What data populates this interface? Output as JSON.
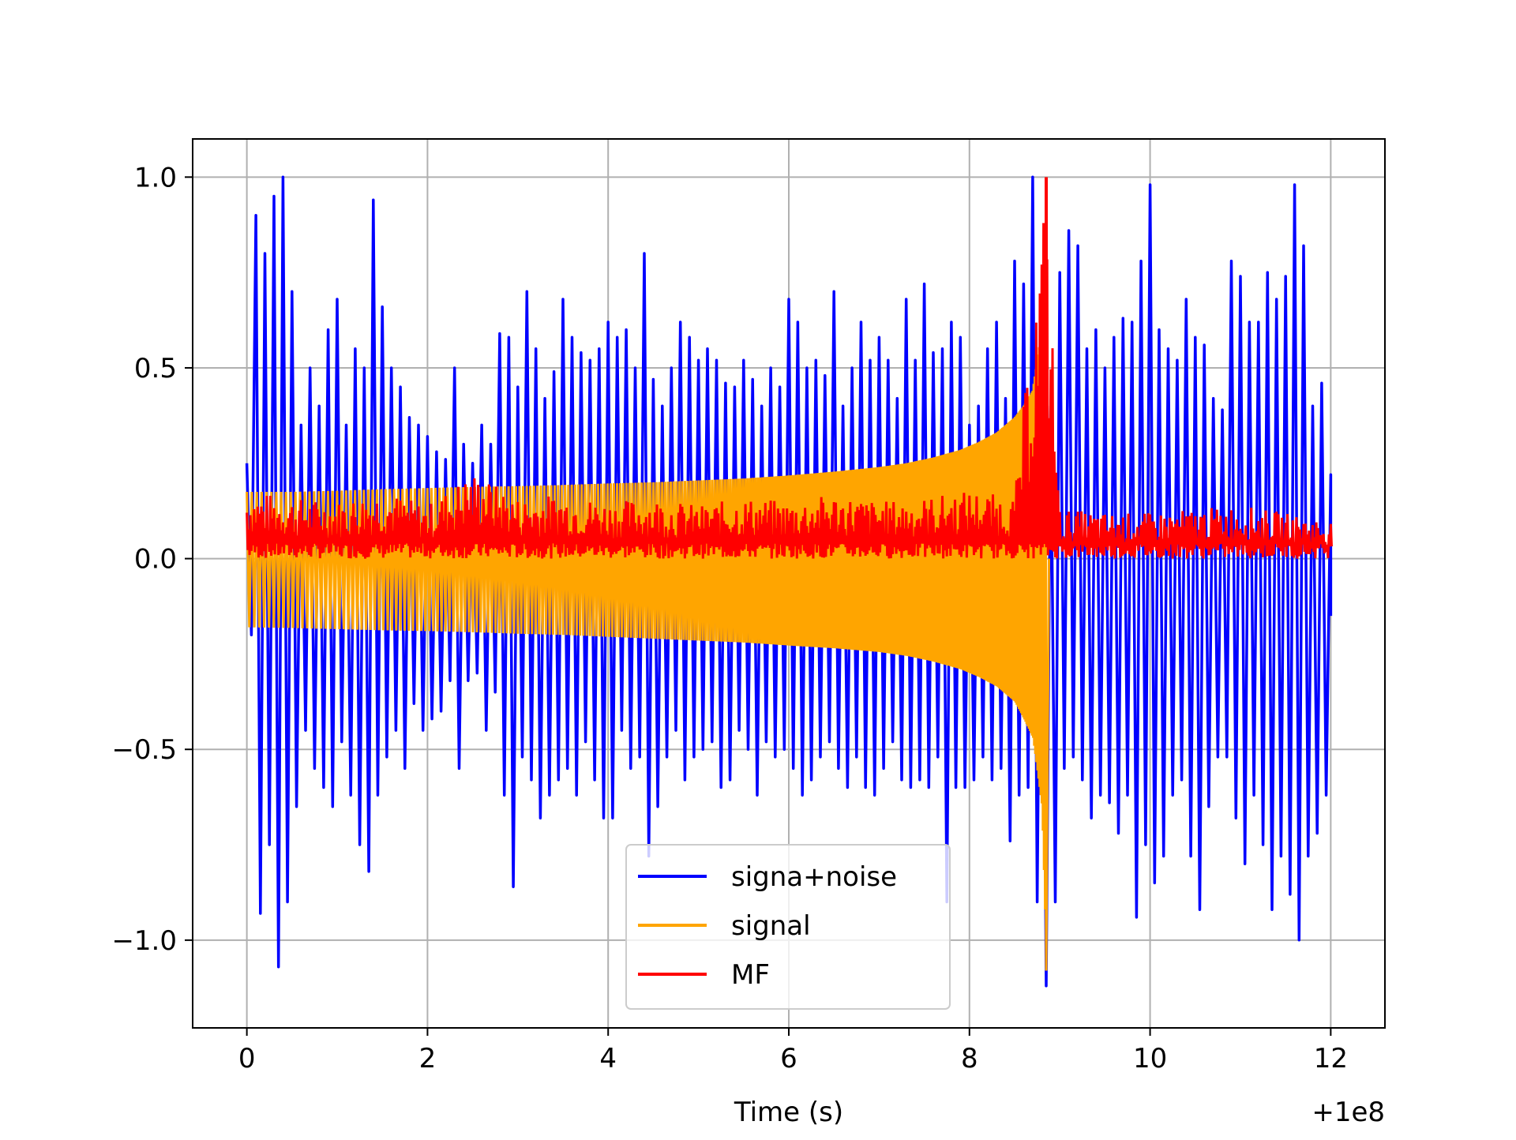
{
  "chart_data": {
    "type": "line",
    "title": "",
    "xlabel": "Time (s)",
    "ylabel": "",
    "x_offset_label": "+1e8",
    "xlim": [
      -0.6,
      12.6
    ],
    "ylim": [
      -1.23,
      1.1
    ],
    "xticks": [
      0,
      2,
      4,
      6,
      8,
      10,
      12
    ],
    "xtick_labels": [
      "0",
      "2",
      "4",
      "6",
      "8",
      "10",
      "12"
    ],
    "yticks": [
      -1.0,
      -0.5,
      0.0,
      0.5,
      1.0
    ],
    "ytick_labels": [
      "−1.0",
      "−0.5",
      "0.0",
      "0.5",
      "1.0"
    ],
    "grid": true,
    "legend_position": "lower-center",
    "series": [
      {
        "name": "signa+noise",
        "color": "#0000ff",
        "x": [
          0,
          0.1,
          0.2,
          0.3,
          0.4,
          0.5,
          0.6,
          0.7,
          0.8,
          0.9,
          1.0,
          1.1,
          1.2,
          1.3,
          1.4,
          1.5,
          1.6,
          1.7,
          1.8,
          1.9,
          2.0,
          2.1,
          2.2,
          2.3,
          2.4,
          2.5,
          2.6,
          2.7,
          2.8,
          2.9,
          3.0,
          3.1,
          3.2,
          3.3,
          3.4,
          3.5,
          3.6,
          3.7,
          3.8,
          3.9,
          4.0,
          4.1,
          4.2,
          4.3,
          4.4,
          4.5,
          4.6,
          4.7,
          4.8,
          4.9,
          5.0,
          5.1,
          5.2,
          5.3,
          5.4,
          5.5,
          5.6,
          5.7,
          5.8,
          5.9,
          6.0,
          6.1,
          6.2,
          6.3,
          6.4,
          6.5,
          6.6,
          6.7,
          6.8,
          6.9,
          7.0,
          7.1,
          7.2,
          7.3,
          7.4,
          7.5,
          7.6,
          7.7,
          7.8,
          7.9,
          8.0,
          8.1,
          8.2,
          8.3,
          8.4,
          8.5,
          8.6,
          8.7,
          8.8,
          8.9,
          9.0,
          9.1,
          9.2,
          9.3,
          9.4,
          9.5,
          9.6,
          9.7,
          9.8,
          9.9,
          10.0,
          10.1,
          10.2,
          10.3,
          10.4,
          10.5,
          10.6,
          10.7,
          10.8,
          10.9,
          11.0,
          11.1,
          11.2,
          11.3,
          11.4,
          11.5,
          11.6,
          11.7,
          11.8,
          11.9,
          12.0
        ],
        "max": [
          0.25,
          0.9,
          0.8,
          0.95,
          1.0,
          0.7,
          0.35,
          0.5,
          0.4,
          0.6,
          0.68,
          0.35,
          0.55,
          0.5,
          0.94,
          0.66,
          0.5,
          0.45,
          0.37,
          0.35,
          0.32,
          0.28,
          0.26,
          0.5,
          0.3,
          0.25,
          0.35,
          0.3,
          0.59,
          0.58,
          0.45,
          0.7,
          0.55,
          0.42,
          0.49,
          0.68,
          0.58,
          0.54,
          0.52,
          0.55,
          0.62,
          0.58,
          0.6,
          0.5,
          0.8,
          0.47,
          0.4,
          0.5,
          0.62,
          0.58,
          0.52,
          0.55,
          0.52,
          0.46,
          0.45,
          0.52,
          0.47,
          0.4,
          0.5,
          0.45,
          0.68,
          0.62,
          0.5,
          0.52,
          0.48,
          0.7,
          0.4,
          0.5,
          0.62,
          0.52,
          0.58,
          0.52,
          0.42,
          0.68,
          0.52,
          0.72,
          0.54,
          0.55,
          0.62,
          0.58,
          0.35,
          0.4,
          0.55,
          0.62,
          0.42,
          0.78,
          0.72,
          1.0,
          0.52,
          0.4,
          0.75,
          0.86,
          0.82,
          0.55,
          0.6,
          0.5,
          0.58,
          0.63,
          0.62,
          0.78,
          0.98,
          0.6,
          0.55,
          0.52,
          0.68,
          0.58,
          0.56,
          0.42,
          0.39,
          0.78,
          0.74,
          0.62,
          0.62,
          0.75,
          0.68,
          0.74,
          0.98,
          0.82,
          0.4,
          0.46,
          0.22
        ],
        "min": [
          -0.2,
          -0.93,
          -0.75,
          -1.07,
          -0.9,
          -0.65,
          -0.45,
          -0.55,
          -0.6,
          -0.65,
          -0.48,
          -0.62,
          -0.75,
          -0.82,
          -0.62,
          -0.52,
          -0.45,
          -0.55,
          -0.38,
          -0.45,
          -0.42,
          -0.4,
          -0.32,
          -0.55,
          -0.32,
          -0.3,
          -0.45,
          -0.35,
          -0.62,
          -0.86,
          -0.52,
          -0.58,
          -0.68,
          -0.62,
          -0.58,
          -0.55,
          -0.62,
          -0.48,
          -0.58,
          -0.68,
          -0.68,
          -0.45,
          -0.55,
          -0.52,
          -0.78,
          -0.65,
          -0.52,
          -0.45,
          -0.58,
          -0.52,
          -0.5,
          -0.48,
          -0.6,
          -0.58,
          -0.45,
          -0.5,
          -0.62,
          -0.48,
          -0.52,
          -0.5,
          -0.55,
          -0.62,
          -0.58,
          -0.52,
          -0.48,
          -0.55,
          -0.6,
          -0.52,
          -0.6,
          -0.62,
          -0.55,
          -0.48,
          -0.58,
          -0.6,
          -0.58,
          -0.6,
          -0.52,
          -0.9,
          -0.6,
          -0.6,
          -0.58,
          -0.52,
          -0.58,
          -0.55,
          -0.74,
          -0.62,
          -0.6,
          -0.9,
          -1.12,
          -0.9,
          -0.55,
          -0.52,
          -0.58,
          -0.68,
          -0.62,
          -0.64,
          -0.72,
          -0.62,
          -0.94,
          -0.75,
          -0.85,
          -0.78,
          -0.62,
          -0.58,
          -0.78,
          -0.92,
          -0.65,
          -0.52,
          -0.52,
          -0.68,
          -0.8,
          -0.62,
          -0.75,
          -0.92,
          -0.78,
          -0.88,
          -1.0,
          -0.78,
          -0.72,
          -0.62,
          -0.15
        ]
      },
      {
        "name": "signal",
        "color": "#ffa500",
        "envelope": "chirp",
        "x": [
          0,
          0.5,
          1.0,
          1.5,
          2.0,
          2.5,
          3.0,
          3.5,
          4.0,
          4.5,
          5.0,
          5.5,
          6.0,
          6.5,
          7.0,
          7.3,
          7.6,
          7.9,
          8.1,
          8.3,
          8.5,
          8.6,
          8.7,
          8.8,
          8.85
        ],
        "max": [
          0.175,
          0.175,
          0.178,
          0.182,
          0.185,
          0.188,
          0.19,
          0.193,
          0.197,
          0.2,
          0.205,
          0.21,
          0.218,
          0.228,
          0.24,
          0.25,
          0.265,
          0.285,
          0.305,
          0.33,
          0.37,
          0.4,
          0.44,
          0.6,
          0.65
        ],
        "min": [
          -0.18,
          -0.182,
          -0.185,
          -0.188,
          -0.19,
          -0.193,
          -0.197,
          -0.2,
          -0.205,
          -0.21,
          -0.215,
          -0.22,
          -0.228,
          -0.235,
          -0.245,
          -0.255,
          -0.27,
          -0.29,
          -0.31,
          -0.335,
          -0.375,
          -0.42,
          -0.47,
          -0.65,
          -1.08
        ]
      },
      {
        "name": "MF",
        "color": "#ff0000",
        "x": [
          0,
          0.5,
          1.0,
          1.5,
          2.0,
          2.5,
          3.0,
          3.5,
          4.0,
          4.5,
          5.0,
          5.5,
          6.0,
          6.5,
          7.0,
          7.5,
          8.0,
          8.5,
          8.85,
          9.0,
          9.5,
          10.0,
          10.5,
          11.0,
          11.5,
          12.0
        ],
        "max": [
          0.18,
          0.16,
          0.15,
          0.18,
          0.14,
          0.23,
          0.16,
          0.17,
          0.15,
          0.16,
          0.14,
          0.16,
          0.15,
          0.17,
          0.15,
          0.16,
          0.18,
          0.16,
          1.0,
          0.13,
          0.12,
          0.12,
          0.13,
          0.14,
          0.12,
          0.1
        ],
        "min": [
          0.0,
          0.0,
          0.0,
          0.0,
          0.0,
          0.0,
          0.0,
          0.0,
          0.0,
          0.0,
          0.0,
          0.0,
          0.0,
          0.0,
          0.0,
          0.0,
          0.0,
          0.0,
          0.0,
          0.0,
          0.0,
          0.0,
          0.0,
          0.0,
          0.0,
          0.0
        ],
        "peak": {
          "x": 8.85,
          "y": 1.0
        }
      }
    ]
  }
}
